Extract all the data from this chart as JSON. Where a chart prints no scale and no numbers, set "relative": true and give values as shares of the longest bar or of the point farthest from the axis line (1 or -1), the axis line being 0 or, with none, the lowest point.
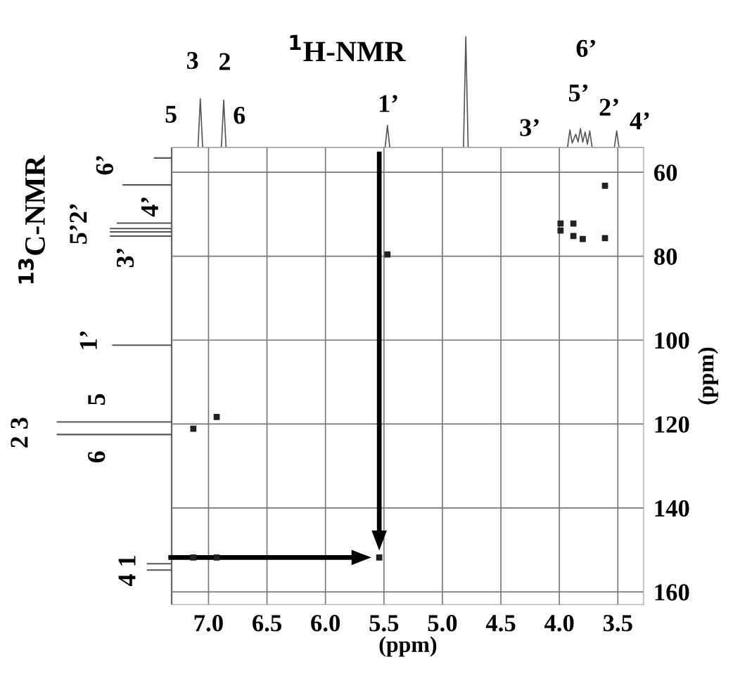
{
  "chart_data": [
    {
      "type": "line",
      "title": "$^{1}$H-NMR",
      "relative": true,
      "xlim": [
        7.31,
        3.28
      ],
      "series": [
        {
          "color": "#555555",
          "x": [
            7.31,
            7.09,
            7.07,
            7.05,
            6.89,
            6.87,
            6.85,
            5.49,
            5.47,
            5.45,
            4.82,
            4.8,
            4.78,
            3.93,
            3.91,
            3.89,
            3.86,
            3.84,
            3.82,
            3.8,
            3.78,
            3.76,
            3.74,
            3.72,
            3.53,
            3.51,
            3.49,
            3.28
          ],
          "values": [
            0,
            0,
            0.44,
            0,
            0,
            0.43,
            0,
            0,
            0.2,
            0,
            0,
            1.0,
            0,
            0,
            0.16,
            0.04,
            0.12,
            0.05,
            0.17,
            0.05,
            0.14,
            0.03,
            0.15,
            0,
            0,
            0.15,
            0,
            0
          ]
        }
      ],
      "annotations": [
        {
          "text": "5",
          "x": 7.07,
          "y": 0.44
        },
        {
          "text": "3",
          "x": 7.07,
          "y": 0.44
        },
        {
          "text": "2",
          "x": 6.87,
          "y": 0.43
        },
        {
          "text": "6",
          "x": 6.87,
          "y": 0.43
        },
        {
          "text": "1’",
          "x": 5.47,
          "y": 0.2
        },
        {
          "text": "6’",
          "x": 3.82,
          "y": 0.17
        },
        {
          "text": "5’",
          "x": 3.86,
          "y": 0.12
        },
        {
          "text": "3’",
          "x": 3.91,
          "y": 0.16
        },
        {
          "text": "2’",
          "x": 3.74,
          "y": 0.15
        },
        {
          "text": "4’",
          "x": 3.51,
          "y": 0.15
        }
      ]
    },
    {
      "type": "bar",
      "orientation": "horizontal",
      "ylabel": "$^{13}$C-NMR",
      "relative": true,
      "ylim": [
        163.0,
        54.1
      ],
      "x": [
        56.6,
        63.0,
        72.1,
        73.4,
        74.2,
        75.2,
        101.2,
        119.5,
        122.5,
        153.3,
        154.8
      ],
      "values": [
        0.16,
        0.43,
        0.48,
        0.54,
        0.54,
        0.54,
        0.52,
        1,
        1,
        0.22,
        0.22
      ],
      "color": "#555555",
      "annotations": [
        {
          "text": "6’",
          "x": 0.16,
          "y": 56.6
        },
        {
          "text": "4’",
          "x": 0.48,
          "y": 72.1
        },
        {
          "text": "5’2’",
          "x": 0.54,
          "y": 73.4
        },
        {
          "text": "3’",
          "x": 0.54,
          "y": 75.2
        },
        {
          "text": "1’",
          "x": 0.52,
          "y": 101.2
        },
        {
          "text": "5",
          "x": 1,
          "y": 119.5
        },
        {
          "text": "2 3",
          "x": 1,
          "y": 119.5
        },
        {
          "text": "6",
          "x": 1,
          "y": 122.5
        },
        {
          "text": "4 1",
          "x": 0.22,
          "y": 153.3
        }
      ]
    },
    {
      "type": "scatter",
      "xlabel": "(ppm)",
      "ylabel": "(ppm)",
      "xlim": [
        7.31,
        3.28
      ],
      "ylim": [
        163.0,
        54.1
      ],
      "xticks": [
        {
          "value": 7.0,
          "label": "7.0"
        },
        6.5,
        {
          "value": 6.0,
          "label": "6.0"
        },
        5.5,
        {
          "value": 5.0,
          "label": "5.0"
        },
        4.5,
        {
          "value": 4.0,
          "label": "4.0"
        },
        3.5
      ],
      "yticks": [
        60,
        80,
        100,
        120,
        140,
        160
      ],
      "grid": true,
      "marker": "square",
      "series": [
        {
          "color": "#222222",
          "x": [
            3.61,
            3.99,
            3.99,
            3.88,
            3.88,
            3.8,
            3.61,
            5.47,
            7.13,
            6.93,
            7.13,
            6.93,
            5.54
          ],
          "values": [
            63.2,
            72.2,
            73.9,
            72.2,
            75.2,
            75.9,
            75.7,
            79.6,
            121.1,
            118.3,
            151.8,
            151.8,
            151.8
          ]
        }
      ]
    }
  ]
}
